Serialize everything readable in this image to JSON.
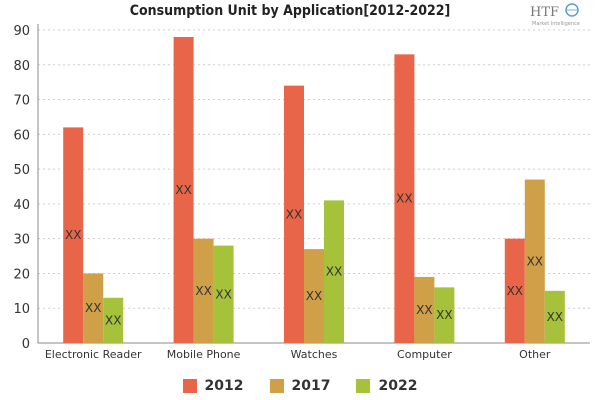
{
  "chart_data": {
    "type": "bar",
    "title": "Consumption Unit by  Application[2012-2022]",
    "categories": [
      "Electronic Reader",
      "Mobile Phone",
      "Watches",
      "Computer",
      "Other"
    ],
    "series": [
      {
        "name": "2012",
        "color": "#E8654A",
        "values": [
          62,
          88,
          74,
          83,
          30
        ],
        "labels": [
          "XX",
          "XX",
          "XX",
          "XX",
          "XX"
        ]
      },
      {
        "name": "2017",
        "color": "#CFA048",
        "values": [
          20,
          30,
          27,
          19,
          47
        ],
        "labels": [
          "XX",
          "XX",
          "XX",
          "XX",
          "XX"
        ]
      },
      {
        "name": "2022",
        "color": "#A6C23A",
        "values": [
          13,
          28,
          41,
          16,
          15
        ],
        "labels": [
          "XX",
          "XX",
          "XX",
          "XX",
          "XX"
        ]
      }
    ],
    "ylim": [
      0,
      90
    ],
    "yticks": [
      0,
      10,
      20,
      30,
      40,
      50,
      60,
      70,
      80,
      90
    ],
    "grid": true,
    "legend": "bottom-center"
  },
  "logo": {
    "text": "HTF",
    "subtext": "Market Intelligence"
  }
}
